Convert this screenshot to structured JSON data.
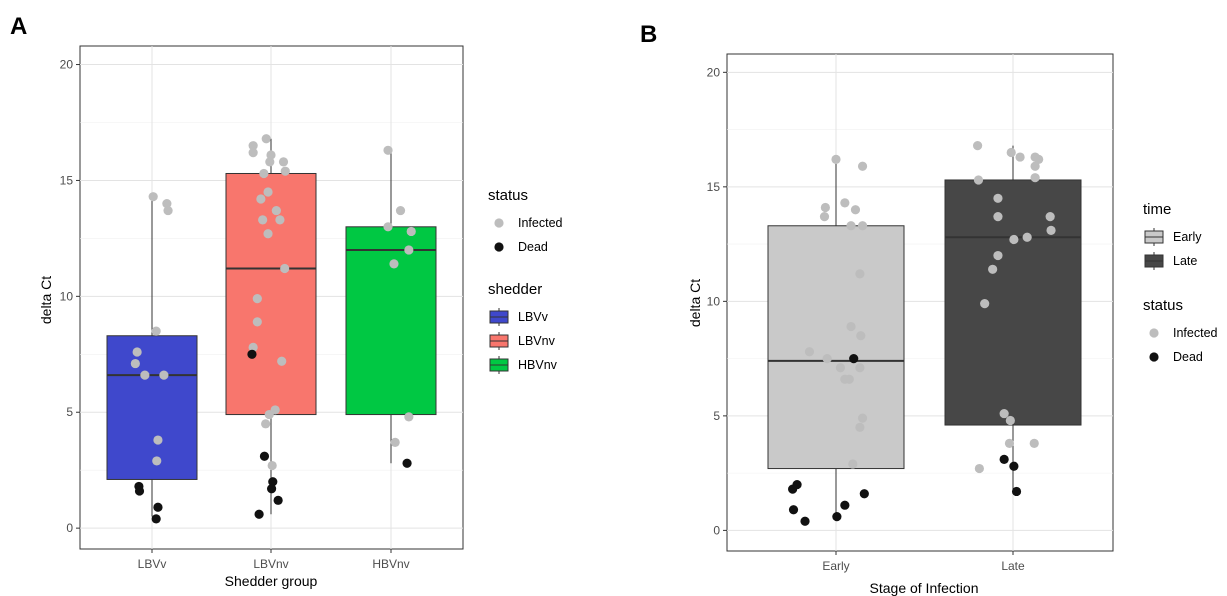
{
  "chart_data": [
    {
      "panel": "A",
      "type": "box",
      "xlabel": "Shedder group",
      "ylabel": "delta Ct",
      "ylim": [
        -0.9,
        20.8
      ],
      "yticks": [
        0,
        5,
        10,
        15,
        20
      ],
      "categories": [
        "LBVv",
        "LBVnv",
        "HBVnv"
      ],
      "boxes": [
        {
          "category": "LBVv",
          "q1": 2.1,
          "median": 6.6,
          "q3": 8.3,
          "whisker_low": 0.5,
          "whisker_high": 14.3,
          "color": "#3f48cc"
        },
        {
          "category": "LBVnv",
          "q1": 4.9,
          "median": 11.2,
          "q3": 15.3,
          "whisker_low": 0.6,
          "whisker_high": 16.8,
          "color": "#f8766d"
        },
        {
          "category": "HBVnv",
          "q1": 4.9,
          "median": 12.0,
          "q3": 13.0,
          "whisker_low": 2.8,
          "whisker_high": 16.3,
          "color": "#00c843"
        }
      ],
      "points": [
        {
          "category": "LBVv",
          "dx": -0.28,
          "y": 7.1,
          "status": "Infected"
        },
        {
          "category": "LBVv",
          "dx": -0.25,
          "y": 7.6,
          "status": "Infected"
        },
        {
          "category": "LBVv",
          "dx": -0.12,
          "y": 6.6,
          "status": "Infected"
        },
        {
          "category": "LBVv",
          "dx": 0.02,
          "y": 14.3,
          "status": "Infected"
        },
        {
          "category": "LBVv",
          "dx": 0.07,
          "y": 8.5,
          "status": "Infected"
        },
        {
          "category": "LBVv",
          "dx": 0.2,
          "y": 6.6,
          "status": "Infected"
        },
        {
          "category": "LBVv",
          "dx": 0.25,
          "y": 14.0,
          "status": "Infected"
        },
        {
          "category": "LBVv",
          "dx": 0.27,
          "y": 13.7,
          "status": "Infected"
        },
        {
          "category": "LBVv",
          "dx": 0.1,
          "y": 3.8,
          "status": "Infected"
        },
        {
          "category": "LBVv",
          "dx": 0.08,
          "y": 2.9,
          "status": "Infected"
        },
        {
          "category": "LBVv",
          "dx": -0.22,
          "y": 1.8,
          "status": "Dead"
        },
        {
          "category": "LBVv",
          "dx": -0.21,
          "y": 1.6,
          "status": "Dead"
        },
        {
          "category": "LBVv",
          "dx": 0.1,
          "y": 0.9,
          "status": "Dead"
        },
        {
          "category": "LBVv",
          "dx": 0.07,
          "y": 0.4,
          "status": "Dead"
        },
        {
          "category": "LBVnv",
          "dx": -0.3,
          "y": 16.5,
          "status": "Infected"
        },
        {
          "category": "LBVnv",
          "dx": -0.3,
          "y": 16.2,
          "status": "Infected"
        },
        {
          "category": "LBVnv",
          "dx": -0.08,
          "y": 16.8,
          "status": "Infected"
        },
        {
          "category": "LBVnv",
          "dx": 0.0,
          "y": 16.1,
          "status": "Infected"
        },
        {
          "category": "LBVnv",
          "dx": -0.02,
          "y": 15.8,
          "status": "Infected"
        },
        {
          "category": "LBVnv",
          "dx": 0.21,
          "y": 15.8,
          "status": "Infected"
        },
        {
          "category": "LBVnv",
          "dx": 0.24,
          "y": 15.4,
          "status": "Infected"
        },
        {
          "category": "LBVnv",
          "dx": -0.12,
          "y": 15.3,
          "status": "Infected"
        },
        {
          "category": "LBVnv",
          "dx": -0.05,
          "y": 14.5,
          "status": "Infected"
        },
        {
          "category": "LBVnv",
          "dx": -0.17,
          "y": 14.2,
          "status": "Infected"
        },
        {
          "category": "LBVnv",
          "dx": 0.09,
          "y": 13.7,
          "status": "Infected"
        },
        {
          "category": "LBVnv",
          "dx": -0.14,
          "y": 13.3,
          "status": "Infected"
        },
        {
          "category": "LBVnv",
          "dx": 0.15,
          "y": 13.3,
          "status": "Infected"
        },
        {
          "category": "LBVnv",
          "dx": -0.05,
          "y": 12.7,
          "status": "Infected"
        },
        {
          "category": "LBVnv",
          "dx": 0.23,
          "y": 11.2,
          "status": "Infected"
        },
        {
          "category": "LBVnv",
          "dx": -0.23,
          "y": 9.9,
          "status": "Infected"
        },
        {
          "category": "LBVnv",
          "dx": -0.23,
          "y": 8.9,
          "status": "Infected"
        },
        {
          "category": "LBVnv",
          "dx": -0.3,
          "y": 7.8,
          "status": "Infected"
        },
        {
          "category": "LBVnv",
          "dx": 0.18,
          "y": 7.2,
          "status": "Infected"
        },
        {
          "category": "LBVnv",
          "dx": 0.07,
          "y": 5.1,
          "status": "Infected"
        },
        {
          "category": "LBVnv",
          "dx": -0.03,
          "y": 4.9,
          "status": "Infected"
        },
        {
          "category": "LBVnv",
          "dx": -0.09,
          "y": 4.5,
          "status": "Infected"
        },
        {
          "category": "LBVnv",
          "dx": 0.02,
          "y": 2.7,
          "status": "Infected"
        },
        {
          "category": "LBVnv",
          "dx": -0.32,
          "y": 7.5,
          "status": "Dead"
        },
        {
          "category": "LBVnv",
          "dx": -0.11,
          "y": 3.1,
          "status": "Dead"
        },
        {
          "category": "LBVnv",
          "dx": 0.03,
          "y": 2.0,
          "status": "Dead"
        },
        {
          "category": "LBVnv",
          "dx": 0.01,
          "y": 1.7,
          "status": "Dead"
        },
        {
          "category": "LBVnv",
          "dx": 0.12,
          "y": 1.2,
          "status": "Dead"
        },
        {
          "category": "LBVnv",
          "dx": -0.2,
          "y": 0.6,
          "status": "Dead"
        },
        {
          "category": "HBVnv",
          "dx": -0.05,
          "y": 16.3,
          "status": "Infected"
        },
        {
          "category": "HBVnv",
          "dx": 0.16,
          "y": 13.7,
          "status": "Infected"
        },
        {
          "category": "HBVnv",
          "dx": -0.05,
          "y": 13.0,
          "status": "Infected"
        },
        {
          "category": "HBVnv",
          "dx": 0.34,
          "y": 12.8,
          "status": "Infected"
        },
        {
          "category": "HBVnv",
          "dx": 0.3,
          "y": 12.0,
          "status": "Infected"
        },
        {
          "category": "HBVnv",
          "dx": 0.05,
          "y": 11.4,
          "status": "Infected"
        },
        {
          "category": "HBVnv",
          "dx": 0.3,
          "y": 4.8,
          "status": "Infected"
        },
        {
          "category": "HBVnv",
          "dx": 0.07,
          "y": 3.7,
          "status": "Infected"
        },
        {
          "category": "HBVnv",
          "dx": 0.27,
          "y": 2.8,
          "status": "Dead"
        }
      ],
      "legends": [
        {
          "title": "status",
          "type": "points",
          "entries": [
            {
              "label": "Infected",
              "color": "#bdbdbd"
            },
            {
              "label": "Dead",
              "color": "#111111"
            }
          ]
        },
        {
          "title": "shedder",
          "type": "boxes",
          "entries": [
            {
              "label": "LBVv",
              "color": "#3f48cc"
            },
            {
              "label": "LBVnv",
              "color": "#f8766d"
            },
            {
              "label": "HBVnv",
              "color": "#00c843"
            }
          ]
        }
      ]
    },
    {
      "panel": "B",
      "type": "box",
      "xlabel": "Stage of Infection",
      "ylabel": "delta Ct",
      "ylim": [
        -0.9,
        20.8
      ],
      "yticks": [
        0,
        5,
        10,
        15,
        20
      ],
      "categories": [
        "Early",
        "Late"
      ],
      "boxes": [
        {
          "category": "Early",
          "q1": 2.7,
          "median": 7.4,
          "q3": 13.3,
          "whisker_low": 0.5,
          "whisker_high": 16.2,
          "color": "#c9c9c9"
        },
        {
          "category": "Late",
          "q1": 4.6,
          "median": 12.8,
          "q3": 15.3,
          "whisker_low": 1.7,
          "whisker_high": 16.8,
          "color": "#474747"
        }
      ],
      "points": [
        {
          "category": "Early",
          "dx": -0.3,
          "y": 7.8,
          "status": "Infected"
        },
        {
          "category": "Early",
          "dx": -0.1,
          "y": 7.5,
          "status": "Infected"
        },
        {
          "category": "Early",
          "dx": 0.0,
          "y": 16.2,
          "status": "Infected"
        },
        {
          "category": "Early",
          "dx": 0.3,
          "y": 15.9,
          "status": "Infected"
        },
        {
          "category": "Early",
          "dx": 0.05,
          "y": 7.1,
          "status": "Infected"
        },
        {
          "category": "Early",
          "dx": 0.1,
          "y": 6.6,
          "status": "Infected"
        },
        {
          "category": "Early",
          "dx": 0.15,
          "y": 6.6,
          "status": "Infected"
        },
        {
          "category": "Early",
          "dx": 0.22,
          "y": 14.0,
          "status": "Infected"
        },
        {
          "category": "Early",
          "dx": -0.12,
          "y": 14.1,
          "status": "Infected"
        },
        {
          "category": "Early",
          "dx": 0.1,
          "y": 14.3,
          "status": "Infected"
        },
        {
          "category": "Early",
          "dx": -0.13,
          "y": 13.7,
          "status": "Infected"
        },
        {
          "category": "Early",
          "dx": 0.17,
          "y": 13.3,
          "status": "Infected"
        },
        {
          "category": "Early",
          "dx": 0.3,
          "y": 13.3,
          "status": "Infected"
        },
        {
          "category": "Early",
          "dx": 0.27,
          "y": 11.2,
          "status": "Infected"
        },
        {
          "category": "Early",
          "dx": 0.17,
          "y": 8.9,
          "status": "Infected"
        },
        {
          "category": "Early",
          "dx": 0.28,
          "y": 8.5,
          "status": "Infected"
        },
        {
          "category": "Early",
          "dx": 0.27,
          "y": 7.1,
          "status": "Infected"
        },
        {
          "category": "Early",
          "dx": 0.3,
          "y": 4.9,
          "status": "Infected"
        },
        {
          "category": "Early",
          "dx": 0.27,
          "y": 4.5,
          "status": "Infected"
        },
        {
          "category": "Early",
          "dx": 0.19,
          "y": 2.9,
          "status": "Infected"
        },
        {
          "category": "Early",
          "dx": 0.2,
          "y": 7.5,
          "status": "Dead"
        },
        {
          "category": "Early",
          "dx": -0.49,
          "y": 1.8,
          "status": "Dead"
        },
        {
          "category": "Early",
          "dx": -0.44,
          "y": 2.0,
          "status": "Dead"
        },
        {
          "category": "Early",
          "dx": -0.48,
          "y": 0.9,
          "status": "Dead"
        },
        {
          "category": "Early",
          "dx": -0.35,
          "y": 0.4,
          "status": "Dead"
        },
        {
          "category": "Early",
          "dx": 0.01,
          "y": 0.6,
          "status": "Dead"
        },
        {
          "category": "Early",
          "dx": 0.1,
          "y": 1.1,
          "status": "Dead"
        },
        {
          "category": "Early",
          "dx": 0.32,
          "y": 1.6,
          "status": "Dead"
        },
        {
          "category": "Late",
          "dx": -0.4,
          "y": 16.8,
          "status": "Infected"
        },
        {
          "category": "Late",
          "dx": -0.02,
          "y": 16.5,
          "status": "Infected"
        },
        {
          "category": "Late",
          "dx": 0.08,
          "y": 16.3,
          "status": "Infected"
        },
        {
          "category": "Late",
          "dx": 0.25,
          "y": 16.3,
          "status": "Infected"
        },
        {
          "category": "Late",
          "dx": 0.29,
          "y": 16.2,
          "status": "Infected"
        },
        {
          "category": "Late",
          "dx": 0.25,
          "y": 15.9,
          "status": "Infected"
        },
        {
          "category": "Late",
          "dx": 0.25,
          "y": 15.4,
          "status": "Infected"
        },
        {
          "category": "Late",
          "dx": -0.39,
          "y": 15.3,
          "status": "Infected"
        },
        {
          "category": "Late",
          "dx": -0.17,
          "y": 14.5,
          "status": "Infected"
        },
        {
          "category": "Late",
          "dx": 0.42,
          "y": 13.7,
          "status": "Infected"
        },
        {
          "category": "Late",
          "dx": -0.17,
          "y": 13.7,
          "status": "Infected"
        },
        {
          "category": "Late",
          "dx": 0.43,
          "y": 13.1,
          "status": "Infected"
        },
        {
          "category": "Late",
          "dx": 0.01,
          "y": 12.7,
          "status": "Infected"
        },
        {
          "category": "Late",
          "dx": 0.16,
          "y": 12.8,
          "status": "Infected"
        },
        {
          "category": "Late",
          "dx": -0.17,
          "y": 12.0,
          "status": "Infected"
        },
        {
          "category": "Late",
          "dx": -0.23,
          "y": 11.4,
          "status": "Infected"
        },
        {
          "category": "Late",
          "dx": -0.32,
          "y": 9.9,
          "status": "Infected"
        },
        {
          "category": "Late",
          "dx": -0.1,
          "y": 5.1,
          "status": "Infected"
        },
        {
          "category": "Late",
          "dx": -0.03,
          "y": 4.8,
          "status": "Infected"
        },
        {
          "category": "Late",
          "dx": -0.04,
          "y": 3.8,
          "status": "Infected"
        },
        {
          "category": "Late",
          "dx": 0.24,
          "y": 3.8,
          "status": "Infected"
        },
        {
          "category": "Late",
          "dx": -0.38,
          "y": 2.7,
          "status": "Infected"
        },
        {
          "category": "Late",
          "dx": -0.1,
          "y": 3.1,
          "status": "Dead"
        },
        {
          "category": "Late",
          "dx": 0.01,
          "y": 2.8,
          "status": "Dead"
        },
        {
          "category": "Late",
          "dx": 0.04,
          "y": 1.7,
          "status": "Dead"
        }
      ],
      "legends": [
        {
          "title": "time",
          "type": "boxes",
          "entries": [
            {
              "label": "Early",
              "color": "#c9c9c9"
            },
            {
              "label": "Late",
              "color": "#474747"
            }
          ]
        },
        {
          "title": "status",
          "type": "points",
          "entries": [
            {
              "label": "Infected",
              "color": "#bdbdbd"
            },
            {
              "label": "Dead",
              "color": "#111111"
            }
          ]
        }
      ]
    }
  ]
}
